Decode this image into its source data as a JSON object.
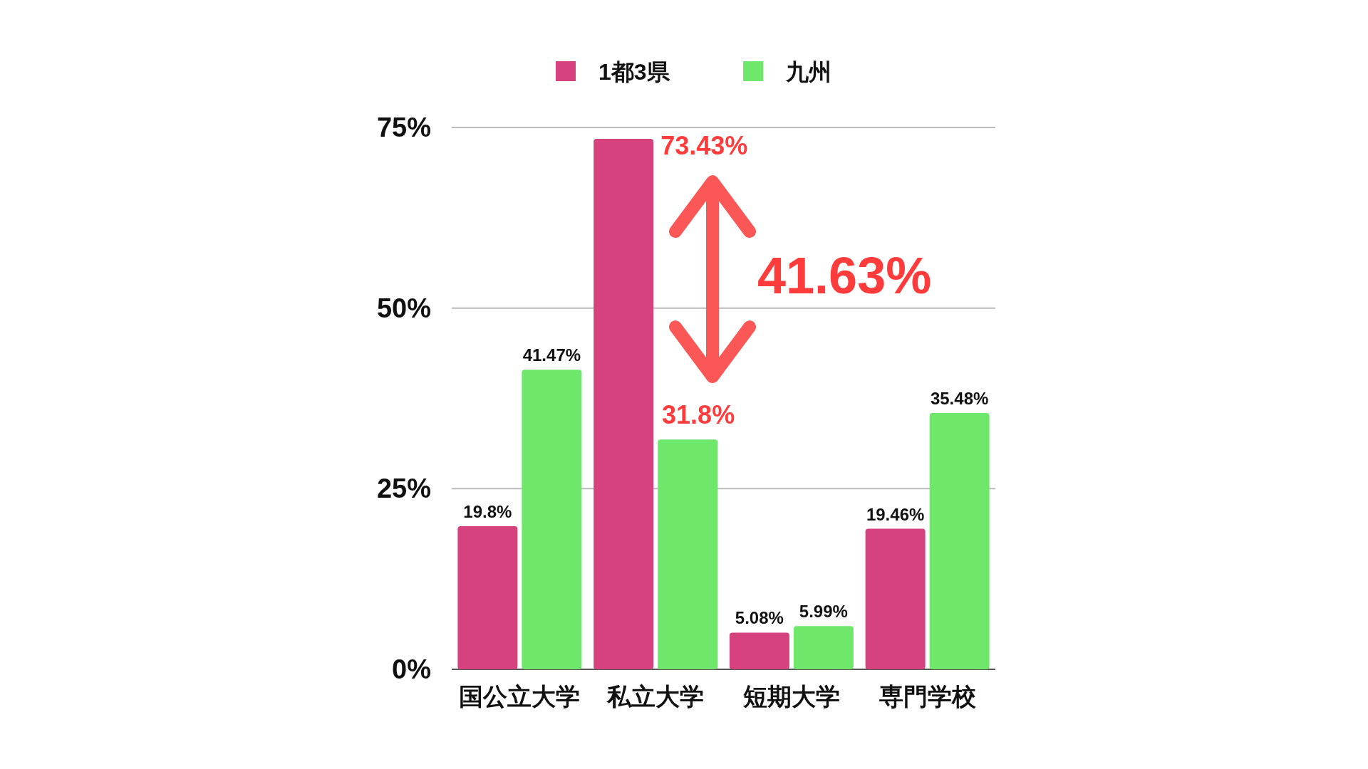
{
  "chart_data": {
    "type": "bar",
    "categories": [
      "国公立大学",
      "私立大学",
      "短期大学",
      "専門学校"
    ],
    "series": [
      {
        "name": "1都3県",
        "color": "#d6427e",
        "values": [
          19.8,
          73.43,
          5.08,
          19.46
        ],
        "value_labels": [
          "19.8%",
          null,
          "5.08%",
          "19.46%"
        ]
      },
      {
        "name": "九州",
        "color": "#6ee76b",
        "values": [
          41.47,
          31.8,
          5.99,
          35.48
        ],
        "value_labels": [
          "41.47%",
          null,
          "5.99%",
          "35.48%"
        ]
      }
    ],
    "ylim": [
      0,
      75
    ],
    "yticks": [
      {
        "value": 0,
        "label": "0%"
      },
      {
        "value": 25,
        "label": "25%"
      },
      {
        "value": 50,
        "label": "50%"
      },
      {
        "value": 75,
        "label": "75%"
      }
    ],
    "grid": "y",
    "legend": "top",
    "annotations": [
      {
        "text": "73.43%",
        "x": "私立大学",
        "y": 73.43
      },
      {
        "text": "31.8%",
        "x": "私立大学",
        "y": 31.8
      },
      "41.63%"
    ]
  }
}
